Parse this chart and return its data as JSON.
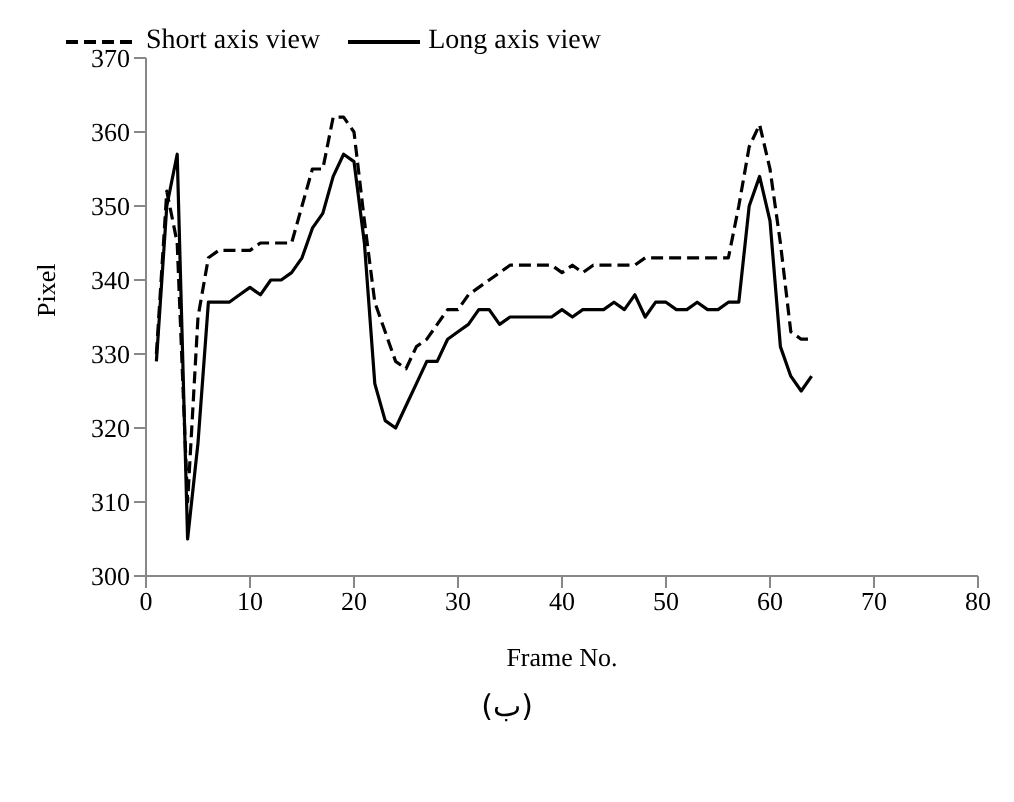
{
  "chart_data": {
    "type": "line",
    "xlabel": "Frame No.",
    "ylabel": "Pixel",
    "x": [
      1,
      2,
      3,
      4,
      5,
      6,
      7,
      8,
      9,
      10,
      11,
      12,
      13,
      14,
      15,
      16,
      17,
      18,
      19,
      20,
      21,
      22,
      23,
      24,
      25,
      26,
      27,
      28,
      29,
      30,
      31,
      32,
      33,
      34,
      35,
      36,
      37,
      38,
      39,
      40,
      41,
      42,
      43,
      44,
      45,
      46,
      47,
      48,
      49,
      50,
      51,
      52,
      53,
      54,
      55,
      56,
      57,
      58,
      59,
      60,
      61,
      62,
      63,
      64
    ],
    "series": [
      {
        "name": "Short axis view",
        "color": "#000000",
        "line_style": "dashed",
        "values": [
          330,
          352,
          345,
          310,
          335,
          343,
          344,
          344,
          344,
          344,
          345,
          345,
          345,
          345,
          350,
          355,
          355,
          362,
          362,
          360,
          348,
          337,
          333,
          329,
          328,
          331,
          332,
          334,
          336,
          336,
          338,
          339,
          340,
          341,
          342,
          342,
          342,
          342,
          342,
          341,
          342,
          341,
          342,
          342,
          342,
          342,
          342,
          343,
          343,
          343,
          343,
          343,
          343,
          343,
          343,
          343,
          350,
          358,
          361,
          355,
          345,
          333,
          332,
          332
        ]
      },
      {
        "name": "Long axis view",
        "color": "#000000",
        "line_style": "solid",
        "values": [
          329,
          350,
          357,
          305,
          318,
          337,
          337,
          337,
          338,
          339,
          338,
          340,
          340,
          341,
          343,
          347,
          349,
          354,
          357,
          356,
          345,
          326,
          321,
          320,
          323,
          326,
          329,
          329,
          332,
          333,
          334,
          336,
          336,
          334,
          335,
          335,
          335,
          335,
          335,
          336,
          335,
          336,
          336,
          336,
          337,
          336,
          338,
          335,
          337,
          337,
          336,
          336,
          337,
          336,
          336,
          337,
          337,
          350,
          354,
          348,
          331,
          327,
          325,
          327
        ]
      }
    ],
    "xlim": [
      0,
      80
    ],
    "xticks": [
      0,
      10,
      20,
      30,
      40,
      50,
      60,
      70,
      80
    ],
    "ylim": [
      300,
      370
    ],
    "yticks": [
      300,
      310,
      320,
      330,
      340,
      350,
      360,
      370
    ],
    "grid": false,
    "legend": "top left",
    "marker": "none",
    "annotations": [
      "(ب)"
    ]
  }
}
